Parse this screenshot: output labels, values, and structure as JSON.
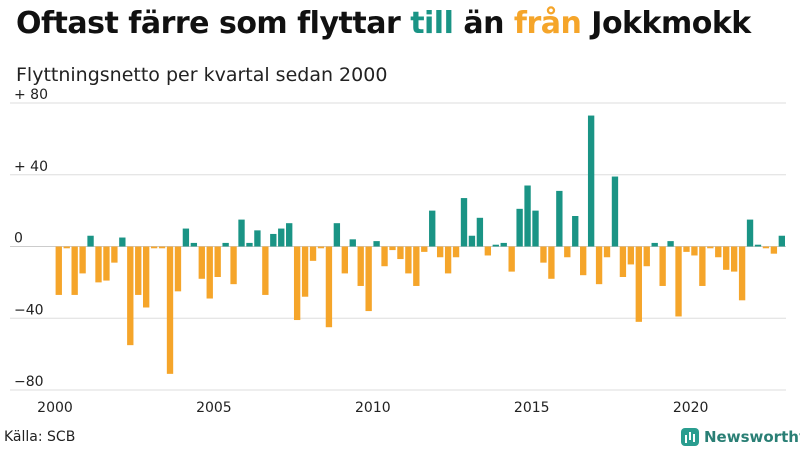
{
  "title": {
    "part1": "Oftast färre som flyttar ",
    "word_till": "till",
    "part2": " än ",
    "word_fran": "från",
    "part3": " Jokkmokk"
  },
  "subtitle": "Flyttningsnetto per kvartal sedan 2000",
  "source": "Källa: SCB",
  "brand": "Newsworthy",
  "colors": {
    "positive": "#1a9485",
    "negative": "#f5a52a",
    "grid": "#dddddd",
    "text": "#111111"
  },
  "chart_data": {
    "type": "bar",
    "ylim": [
      -80,
      80
    ],
    "yticks": [
      80,
      40,
      0,
      -40,
      -80
    ],
    "ytick_labels": [
      "+ 80",
      "+ 40",
      "0",
      "−40",
      "−80"
    ],
    "xticks": [
      2000,
      2005,
      2010,
      2015,
      2020
    ],
    "x_start": 2000,
    "values": [
      -27,
      -1,
      -27,
      -15,
      6,
      -20,
      -19,
      -9,
      5,
      -55,
      -27,
      -34,
      -1,
      -1,
      -71,
      -25,
      10,
      2,
      -18,
      -29,
      -17,
      2,
      -21,
      15,
      2,
      9,
      -27,
      7,
      10,
      13,
      -41,
      -28,
      -8,
      -1,
      -45,
      13,
      -15,
      4,
      -22,
      -36,
      3,
      -11,
      -2,
      -7,
      -15,
      -22,
      -3,
      20,
      -6,
      -15,
      -6,
      27,
      6,
      16,
      -5,
      1,
      2,
      -14,
      21,
      34,
      20,
      -9,
      -18,
      31,
      -6,
      17,
      -16,
      73,
      -21,
      -6,
      39,
      -17,
      -10,
      -42,
      -11,
      2,
      -22,
      3,
      -39,
      -3,
      -5,
      -22,
      -1,
      -6,
      -13,
      -14,
      -30,
      15,
      1,
      -1,
      -4,
      6
    ]
  }
}
